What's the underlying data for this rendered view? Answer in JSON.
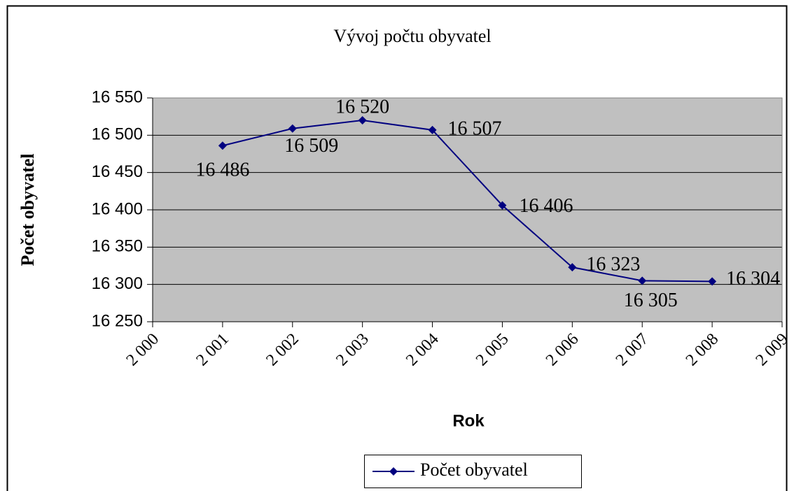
{
  "chart_data": {
    "type": "line",
    "title": "Vývoj počtu obyvatel",
    "x_label": "Rok",
    "y_label": "Počet obyvatel",
    "x": [
      2001,
      2002,
      2003,
      2004,
      2005,
      2006,
      2007,
      2008
    ],
    "series": [
      {
        "name": "Počet obyvatel",
        "color": "#000080",
        "values": [
          16486,
          16509,
          16520,
          16507,
          16406,
          16323,
          16305,
          16304
        ],
        "value_labels": [
          "16 486",
          "16 509",
          "16 520",
          "16 507",
          "16 406",
          "16 323",
          "16 305",
          "16 304"
        ]
      }
    ],
    "xlim": [
      2000,
      2009
    ],
    "xticks": [
      {
        "value": 2000,
        "label": "2 000"
      },
      {
        "value": 2001,
        "label": "2 001"
      },
      {
        "value": 2002,
        "label": "2 002"
      },
      {
        "value": 2003,
        "label": "2 003"
      },
      {
        "value": 2004,
        "label": "2 004"
      },
      {
        "value": 2005,
        "label": "2 005"
      },
      {
        "value": 2006,
        "label": "2 006"
      },
      {
        "value": 2007,
        "label": "2 007"
      },
      {
        "value": 2008,
        "label": "2 008"
      },
      {
        "value": 2009,
        "label": "2 009"
      }
    ],
    "ylim": [
      16250,
      16550
    ],
    "yticks": [
      {
        "value": 16250,
        "label": "16 250"
      },
      {
        "value": 16300,
        "label": "16 300"
      },
      {
        "value": 16350,
        "label": "16 350"
      },
      {
        "value": 16400,
        "label": "16 400"
      },
      {
        "value": 16450,
        "label": "16 450"
      },
      {
        "value": 16500,
        "label": "16 500"
      },
      {
        "value": 16550,
        "label": "16 550"
      }
    ],
    "grid": true,
    "plot_background": "#c0c0c0",
    "legend": "bottom"
  }
}
